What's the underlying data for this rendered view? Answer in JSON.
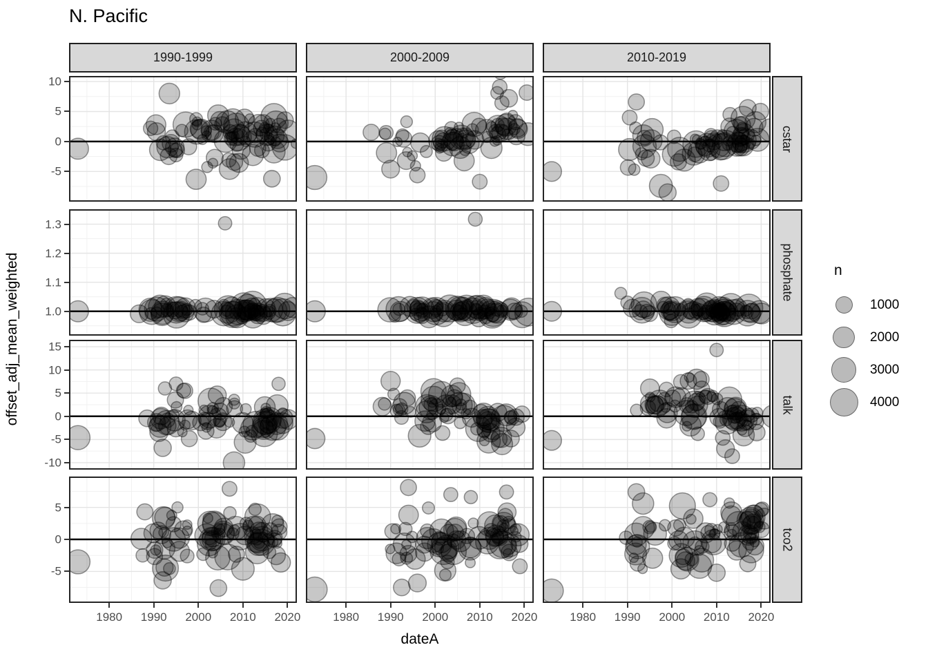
{
  "title": "N. Pacific",
  "chart_data": {
    "type": "scatter",
    "title": "N. Pacific",
    "xlabel": "dateA",
    "ylabel": "offset_adj_mean_weighted",
    "facet_layout": "grid: columns = decade bins, rows = variables",
    "col_facets": [
      "1990-1999",
      "2000-2009",
      "2010-2019"
    ],
    "row_facets": [
      {
        "name": "cstar",
        "ylim": [
          -9.8,
          10.7
        ],
        "yticks": [
          -5,
          0,
          5,
          10
        ],
        "ytick_labels": [
          "-5",
          "0",
          "5",
          "10"
        ],
        "refline": 0
      },
      {
        "name": "phosphate",
        "ylim": [
          0.921,
          1.3465
        ],
        "yticks": [
          1.0,
          1.1,
          1.2,
          1.3
        ],
        "ytick_labels": [
          "1.0",
          "1.1",
          "1.2",
          "1.3"
        ],
        "refline": 1.0
      },
      {
        "name": "talk",
        "ylim": [
          -11.2,
          16.2
        ],
        "yticks": [
          -10,
          -5,
          0,
          5,
          10,
          15
        ],
        "ytick_labels": [
          "-10",
          "-5",
          "0",
          "5",
          "10",
          "15"
        ],
        "refline": 0
      },
      {
        "name": "tco2",
        "ylim": [
          -9.7,
          9.6
        ],
        "yticks": [
          -5,
          0,
          5
        ],
        "ytick_labels": [
          "-5",
          "0",
          "5"
        ],
        "refline": 0
      }
    ],
    "xlim": [
      1971.3,
      2021.8
    ],
    "x_ticks": [
      1980,
      1990,
      2000,
      2010,
      2020
    ],
    "x_tick_labels": [
      "1980",
      "1990",
      "2000",
      "2010",
      "2020"
    ],
    "grid": {
      "major": true,
      "minor": true,
      "major_color": "#e4e4e4",
      "minor_color": "#f1f1f1"
    },
    "legend": {
      "title": "n",
      "values": [
        1000,
        2000,
        3000,
        4000
      ],
      "position": "right"
    },
    "size_scale": {
      "note": "bubble radius px = a + b*sqrt(n)",
      "a": 4.5,
      "b": 0.253
    },
    "point_style": {
      "fill": "#000000",
      "fill_opacity": 0.22,
      "stroke": "#000000",
      "stroke_opacity": 0.4,
      "stroke_width": 1.5
    },
    "refline_style": {
      "color": "#000000",
      "width": 2.5
    },
    "cluster_format": "[count, x_mean_year, x_sd, y_mean, y_sd, n_min, n_max] (approximate read of dense bubble clouds)",
    "outlier_format": "[year, value, n]",
    "facets": [
      {
        "row": "cstar",
        "col": "1990-1999",
        "seed": 11,
        "clusters": [
          [
            14,
            1993.5,
            1.8,
            0.3,
            2.0,
            80,
            2600
          ],
          [
            26,
            2003.5,
            3.2,
            1.8,
            1.4,
            80,
            3200
          ],
          [
            38,
            2014.5,
            3.0,
            1.6,
            1.4,
            80,
            3600
          ],
          [
            10,
            2009,
            4.5,
            -2.6,
            1.2,
            80,
            2200
          ]
        ],
        "outliers": [
          [
            1973,
            -1.2,
            1800
          ],
          [
            1993.5,
            8,
            1700
          ],
          [
            1999.5,
            -6.3,
            1600
          ],
          [
            2016.5,
            -6.2,
            900
          ],
          [
            2007,
            -4.6,
            1700
          ],
          [
            1990.5,
            2.8,
            1500
          ]
        ]
      },
      {
        "row": "cstar",
        "col": "2000-2009",
        "seed": 22,
        "clusters": [
          [
            12,
            1992.5,
            2.2,
            0.0,
            2.2,
            80,
            2000
          ],
          [
            30,
            2004,
            2.8,
            0.4,
            1.0,
            80,
            3200
          ],
          [
            24,
            2015,
            2.6,
            2.2,
            1.6,
            80,
            3000
          ],
          [
            7,
            2015.5,
            1.8,
            8.0,
            1.8,
            80,
            1400
          ]
        ],
        "outliers": [
          [
            1973,
            -6,
            2600
          ],
          [
            1990,
            -4.6,
            1100
          ],
          [
            1996,
            -5.6,
            700
          ],
          [
            2006.5,
            -3.2,
            1600
          ],
          [
            2010,
            -6.7,
            600
          ],
          [
            1989,
            1.5,
            500
          ]
        ]
      },
      {
        "row": "cstar",
        "col": "2010-2019",
        "seed": 33,
        "clusters": [
          [
            12,
            1994,
            2.5,
            -1.3,
            2.0,
            80,
            2600
          ],
          [
            28,
            2007,
            3.2,
            -0.6,
            1.2,
            80,
            3400
          ],
          [
            34,
            2016,
            2.6,
            1.1,
            1.4,
            80,
            3000
          ]
        ],
        "outliers": [
          [
            1973,
            -5,
            1500
          ],
          [
            1992,
            6.6,
            800
          ],
          [
            1990.5,
            4,
            600
          ],
          [
            1997.5,
            -7.4,
            2300
          ],
          [
            1999,
            -8.5,
            1000
          ],
          [
            2011,
            -7,
            700
          ],
          [
            2017,
            5.6,
            900
          ],
          [
            2013,
            4.5,
            500
          ]
        ]
      },
      {
        "row": "phosphate",
        "col": "1990-1999",
        "seed": 44,
        "clusters": [
          [
            28,
            1996,
            3.5,
            1.003,
            0.012,
            200,
            3600
          ],
          [
            44,
            2011.5,
            4.5,
            1.0,
            0.01,
            200,
            3800
          ]
        ],
        "outliers": [
          [
            1973,
            1.0,
            1800
          ],
          [
            2006,
            1.303,
            420
          ]
        ]
      },
      {
        "row": "phosphate",
        "col": "2000-2009",
        "seed": 55,
        "clusters": [
          [
            26,
            1997,
            3.5,
            1.0,
            0.012,
            200,
            3400
          ],
          [
            46,
            2011,
            4.5,
            0.999,
            0.01,
            200,
            3800
          ]
        ],
        "outliers": [
          [
            1973,
            1.0,
            1800
          ],
          [
            2009,
            1.317,
            480
          ]
        ]
      },
      {
        "row": "phosphate",
        "col": "2010-2019",
        "seed": 66,
        "clusters": [
          [
            22,
            1998,
            3.5,
            1.004,
            0.012,
            200,
            3200
          ],
          [
            50,
            2012,
            4.5,
            1.0,
            0.009,
            200,
            3800
          ]
        ],
        "outliers": [
          [
            1973,
            1.0,
            1500
          ],
          [
            1988.5,
            1.062,
            260
          ],
          [
            1990,
            1.03,
            400
          ]
        ]
      },
      {
        "row": "talk",
        "col": "1990-1999",
        "seed": 77,
        "clusters": [
          [
            20,
            1994,
            2.4,
            0.3,
            2.6,
            80,
            2800
          ],
          [
            24,
            2003,
            3.0,
            0.2,
            2.4,
            80,
            3200
          ],
          [
            30,
            2015,
            2.8,
            -1.0,
            1.8,
            80,
            3600
          ]
        ],
        "outliers": [
          [
            1973,
            -4.6,
            2600
          ],
          [
            1995,
            7,
            450
          ],
          [
            1992.5,
            6,
            400
          ],
          [
            2008,
            -10,
            1900
          ],
          [
            1992,
            -6.8,
            1000
          ],
          [
            2018,
            7,
            400
          ],
          [
            2010.5,
            -5.6,
            2000
          ],
          [
            1997,
            5.5,
            700
          ]
        ]
      },
      {
        "row": "talk",
        "col": "2000-2009",
        "seed": 88,
        "clusters": [
          [
            14,
            1993,
            2.4,
            2.0,
            2.4,
            80,
            2800
          ],
          [
            28,
            2003,
            3.0,
            1.2,
            2.2,
            80,
            3400
          ],
          [
            26,
            2014.5,
            2.8,
            -1.6,
            1.8,
            80,
            3200
          ]
        ],
        "outliers": [
          [
            1973,
            -4.8,
            1600
          ],
          [
            1990,
            7.6,
            1400
          ],
          [
            2005,
            6.6,
            700
          ],
          [
            2015,
            -6,
            1800
          ],
          [
            2012,
            -5.4,
            2400
          ],
          [
            1996.5,
            -4.2,
            2200
          ],
          [
            2017,
            -4.8,
            900
          ]
        ]
      },
      {
        "row": "talk",
        "col": "2010-2019",
        "seed": 99,
        "clusters": [
          [
            18,
            1997,
            2.8,
            2.6,
            1.8,
            80,
            3000
          ],
          [
            24,
            2006,
            3.0,
            2.6,
            2.4,
            80,
            3600
          ],
          [
            32,
            2015.5,
            2.8,
            -0.2,
            1.9,
            80,
            3200
          ]
        ],
        "outliers": [
          [
            1973,
            -5.2,
            1500
          ],
          [
            2010,
            14.3,
            420
          ],
          [
            2005.5,
            8,
            1600
          ],
          [
            2002,
            7.4,
            600
          ],
          [
            2012,
            -7,
            1100
          ],
          [
            2013.5,
            -8.6,
            600
          ],
          [
            2019,
            -3.5,
            900
          ]
        ]
      },
      {
        "row": "tco2",
        "col": "1990-1999",
        "seed": 111,
        "clusters": [
          [
            20,
            1992.5,
            2.4,
            0.2,
            2.2,
            80,
            3200
          ],
          [
            28,
            2002.5,
            3.0,
            0.6,
            2.2,
            80,
            3600
          ],
          [
            34,
            2013.5,
            3.0,
            0.9,
            1.9,
            80,
            3400
          ]
        ],
        "outliers": [
          [
            1973,
            -3.5,
            2600
          ],
          [
            1988,
            4.3,
            800
          ],
          [
            2007,
            7.9,
            600
          ],
          [
            1992,
            -6.4,
            1000
          ],
          [
            2004.5,
            -7.6,
            900
          ],
          [
            2010,
            -4.6,
            2200
          ],
          [
            2018.5,
            -3.6,
            1400
          ],
          [
            1987.5,
            -2.5,
            400
          ]
        ]
      },
      {
        "row": "tco2",
        "col": "2000-2009",
        "seed": 122,
        "clusters": [
          [
            14,
            1993,
            2.4,
            -0.4,
            2.4,
            80,
            3000
          ],
          [
            30,
            2003,
            3.0,
            0.1,
            2.4,
            80,
            3600
          ],
          [
            30,
            2014.5,
            2.8,
            1.2,
            1.9,
            80,
            3400
          ]
        ],
        "outliers": [
          [
            1973,
            -7.8,
            2800
          ],
          [
            1994,
            8.1,
            800
          ],
          [
            2003.5,
            7,
            500
          ],
          [
            2008,
            6.6,
            400
          ],
          [
            1992.5,
            -7.5,
            900
          ],
          [
            1996,
            -6.8,
            1100
          ],
          [
            2016,
            7.4,
            500
          ],
          [
            2019,
            -4.2,
            600
          ]
        ]
      },
      {
        "row": "tco2",
        "col": "2010-2019",
        "seed": 133,
        "clusters": [
          [
            14,
            1994,
            2.4,
            0.0,
            2.2,
            80,
            3000
          ],
          [
            26,
            2005,
            3.0,
            0.5,
            2.2,
            80,
            3400
          ],
          [
            36,
            2015,
            2.8,
            1.2,
            1.9,
            80,
            3600
          ]
        ],
        "outliers": [
          [
            1973,
            -8,
            2400
          ],
          [
            1992,
            7.4,
            900
          ],
          [
            1993.5,
            5.6,
            1900
          ],
          [
            2010,
            -5.2,
            1000
          ],
          [
            2002,
            -4.6,
            1600
          ],
          [
            2008.5,
            6.2,
            500
          ],
          [
            2017,
            -3.8,
            800
          ]
        ]
      }
    ],
    "colors": {
      "strip_background": "#d8d8d8",
      "panel_background": "#ffffff",
      "panel_border": "#242424",
      "tick_label": "#4d4d4d",
      "bubble": "rgba(0,0,0,0.27)"
    }
  }
}
